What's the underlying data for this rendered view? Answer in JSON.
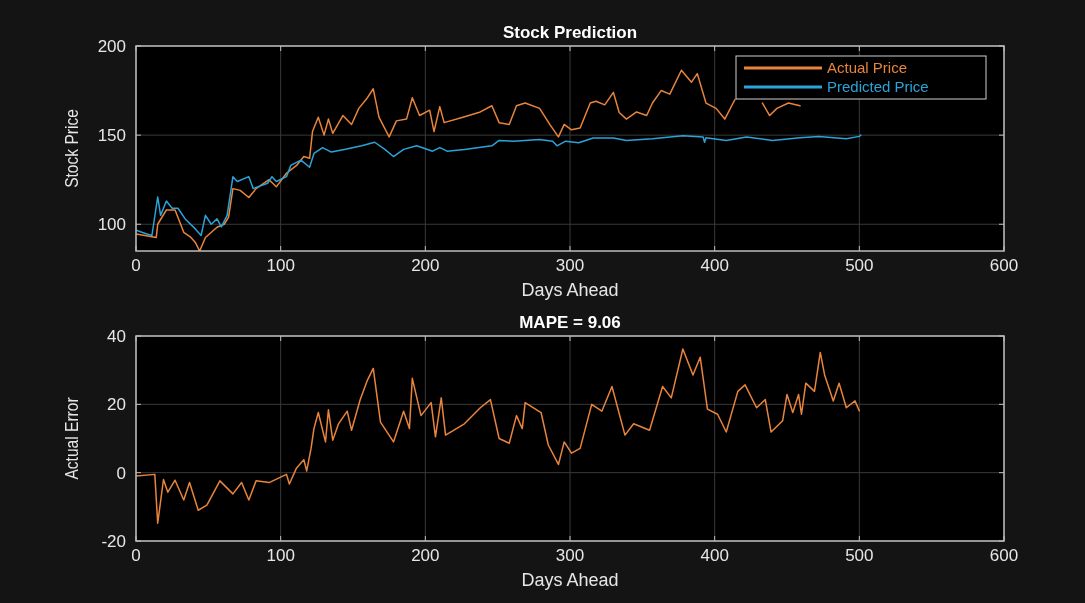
{
  "chart_data": [
    {
      "type": "line",
      "title": "Stock Prediction",
      "xlabel": "Days Ahead",
      "ylabel": "Stock Price",
      "xlim": [
        0,
        600
      ],
      "xticks": [
        0,
        100,
        200,
        300,
        400,
        500,
        600
      ],
      "ylim": [
        85,
        200
      ],
      "yticks": [
        100,
        150,
        200
      ],
      "grid": true,
      "legend": "top right",
      "line_style": "solid",
      "marker": "none",
      "series": [
        {
          "name": "Actual Price",
          "color": "#e8843c",
          "x": [
            0,
            14,
            15,
            21,
            27,
            33,
            38,
            41,
            44,
            48,
            56,
            61,
            64,
            67,
            72,
            78,
            83,
            92,
            97,
            104,
            111,
            116,
            120,
            122,
            126,
            130,
            133,
            136,
            143,
            149,
            154,
            160,
            164,
            168,
            175,
            180,
            187,
            191,
            196,
            203,
            206,
            210,
            213,
            226,
            238,
            246,
            251,
            258,
            263,
            269,
            279,
            286,
            292,
            296,
            301,
            307,
            314,
            318,
            324,
            330,
            334,
            339,
            346,
            353,
            357,
            363,
            369,
            377,
            384,
            388,
            394,
            401,
            407,
            414,
            424,
            433,
            438,
            443,
            451,
            459
          ],
          "values": [
            94.5,
            92.6,
            100,
            108,
            108,
            95.5,
            92.6,
            89.8,
            85,
            92.6,
            98.3,
            100,
            104,
            120,
            119,
            115,
            120,
            125,
            121,
            128.6,
            133,
            138,
            137,
            152,
            160,
            150,
            159,
            151,
            161,
            156,
            165,
            171,
            176,
            160,
            149,
            158,
            159,
            171,
            161,
            164,
            152,
            166,
            157,
            160,
            163,
            166.5,
            157,
            156,
            166.5,
            168,
            165,
            156,
            149,
            156,
            153,
            154,
            168,
            169,
            167,
            174,
            162.7,
            159,
            163,
            161,
            168,
            175,
            173,
            186.4,
            179.7,
            184.5,
            168,
            165,
            159,
            170,
            null,
            168,
            161,
            165,
            168,
            166.5
          ]
        },
        {
          "name": "Predicted Price",
          "color": "#2ba3d8",
          "x": [
            0,
            7,
            11,
            15,
            17,
            21,
            25,
            29,
            34,
            41,
            45,
            48,
            52,
            56,
            59,
            63,
            67,
            70,
            78,
            81,
            91,
            94,
            97,
            104,
            107,
            114,
            120,
            123,
            129,
            135,
            144,
            156,
            165,
            172,
            178,
            185,
            194,
            205,
            210,
            215,
            227,
            246,
            251,
            261,
            279,
            288,
            291,
            297,
            306,
            316,
            330,
            339,
            357,
            378,
            392,
            393,
            394,
            408,
            422,
            440,
            459,
            472,
            491,
            500,
            501
          ],
          "values": [
            96.6,
            94.7,
            93.7,
            115.3,
            105,
            113,
            109,
            109,
            103,
            97.4,
            93.7,
            105,
            100,
            103,
            98.5,
            105,
            126.7,
            124,
            126.7,
            120,
            123,
            126.7,
            124,
            126.7,
            133,
            136,
            132,
            139.7,
            143,
            140.5,
            142,
            144,
            146,
            142,
            138,
            142,
            144,
            141,
            143,
            141,
            142,
            144,
            147,
            146.6,
            147.5,
            146.6,
            144,
            146.6,
            145.7,
            148.4,
            148.4,
            147,
            148,
            149.7,
            149,
            146,
            148.5,
            147,
            149,
            147,
            148.5,
            149.3,
            148,
            149.3,
            150
          ]
        }
      ]
    },
    {
      "type": "line",
      "title": "MAPE = 9.06",
      "xlabel": "Days Ahead",
      "ylabel": "Actual Error",
      "xlim": [
        0,
        600
      ],
      "xticks": [
        0,
        100,
        200,
        300,
        400,
        500,
        600
      ],
      "ylim": [
        -20,
        40
      ],
      "yticks": [
        -20,
        0,
        20,
        40
      ],
      "grid": true,
      "line_style": "solid",
      "marker": "none",
      "series": [
        {
          "color": "#e8843c",
          "x": [
            0,
            13,
            15,
            19,
            22,
            27,
            33,
            37,
            43,
            49,
            58,
            67,
            73,
            78,
            83,
            92,
            104,
            106,
            111,
            116,
            118,
            121,
            123,
            126,
            131,
            133,
            136,
            140,
            146,
            149,
            155,
            160,
            164,
            169,
            178,
            185,
            189,
            191,
            197,
            204,
            207,
            211,
            214,
            227,
            238,
            245,
            251,
            258,
            263,
            267,
            269,
            280,
            285,
            292,
            296,
            301,
            307,
            315,
            322,
            329,
            338,
            344,
            355,
            364,
            370,
            378,
            385,
            390,
            395,
            402,
            408,
            416,
            421,
            429,
            435,
            439,
            447,
            450,
            454,
            458,
            460,
            463,
            469,
            473,
            476,
            482,
            486,
            491,
            497,
            500
          ],
          "values": [
            -1,
            -0.5,
            -14.8,
            -2,
            -5.7,
            -2.2,
            -8,
            -2.9,
            -11,
            -9.5,
            -2.4,
            -6.2,
            -2.9,
            -8,
            -2.4,
            -2.9,
            -0.5,
            -3.3,
            1.4,
            3.8,
            0.5,
            7.1,
            12.9,
            17.6,
            9,
            18.4,
            9.5,
            14.3,
            18,
            12.4,
            21.4,
            27.1,
            30.5,
            14.8,
            9,
            18,
            12.9,
            27.6,
            16.7,
            20.5,
            10.5,
            21.9,
            11,
            14.3,
            19,
            21.4,
            10,
            8.6,
            16.7,
            12.9,
            20.5,
            17.6,
            8.1,
            2.4,
            9,
            5.7,
            7.1,
            20,
            18,
            25.2,
            11,
            14.3,
            12.4,
            25.2,
            21.9,
            36.2,
            28.6,
            33.8,
            18.6,
            17.1,
            11.9,
            23.8,
            25.7,
            19,
            21.4,
            11.9,
            15.2,
            22.9,
            17.6,
            22.9,
            17.1,
            26.2,
            23.8,
            35.2,
            28.6,
            21,
            26.2,
            19,
            21,
            18.1
          ]
        }
      ]
    }
  ]
}
